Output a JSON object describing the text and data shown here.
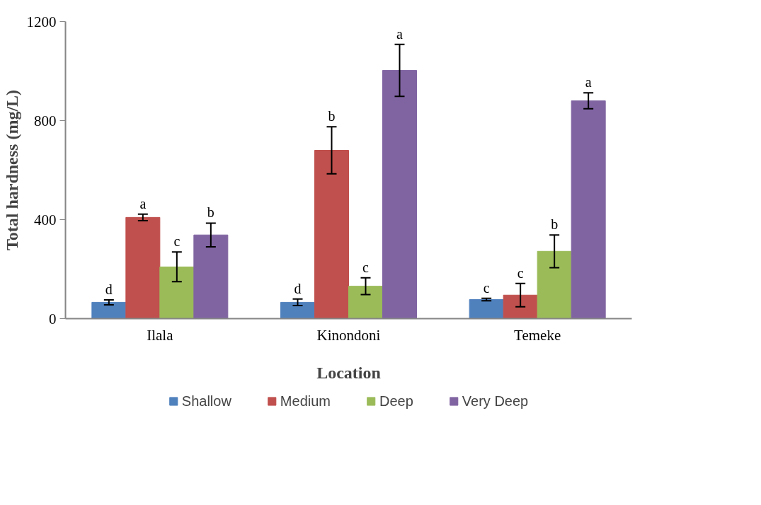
{
  "chart_data": {
    "type": "bar",
    "xlabel": "Location",
    "ylabel": "Total hardness (mg/L)",
    "categories": [
      "Ilala",
      "Kinondoni",
      "Temeke"
    ],
    "ylim": [
      0,
      1200
    ],
    "yticks": [
      0,
      400,
      800,
      1200
    ],
    "grid": false,
    "legend": "bottom",
    "series": [
      {
        "name": "Shallow",
        "color": "#4f81bd",
        "values": [
          66,
          66,
          77
        ],
        "errors": [
          10,
          13,
          5
        ],
        "value_labels": [
          "d",
          "d",
          "c"
        ]
      },
      {
        "name": "Medium",
        "color": "#c0504d",
        "values": [
          409,
          680,
          95
        ],
        "errors": [
          13,
          95,
          47
        ],
        "value_labels": [
          "a",
          "b",
          "c"
        ]
      },
      {
        "name": "Deep",
        "color": "#9bbb59",
        "values": [
          209,
          131,
          272
        ],
        "errors": [
          60,
          34,
          66
        ],
        "value_labels": [
          "c",
          "c",
          "b"
        ]
      },
      {
        "name": "Very Deep",
        "color": "#8064a2",
        "values": [
          338,
          1003,
          880
        ],
        "errors": [
          48,
          105,
          32
        ],
        "value_labels": [
          "b",
          "a",
          "a"
        ]
      }
    ]
  }
}
